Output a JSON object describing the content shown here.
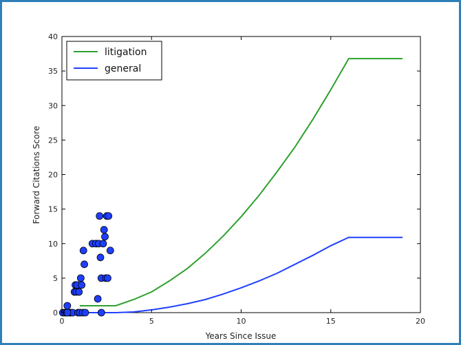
{
  "chart_data": {
    "type": "line",
    "title": "",
    "xlabel": "Years Since Issue",
    "ylabel": "Forward Citations Score",
    "xlim": [
      0,
      20
    ],
    "ylim": [
      0,
      40
    ],
    "xticks": [
      0,
      5,
      10,
      15,
      20
    ],
    "yticks": [
      0,
      5,
      10,
      15,
      20,
      25,
      30,
      35,
      40
    ],
    "grid": false,
    "legend_position": "top-left",
    "series": [
      {
        "name": "litigation",
        "kind": "line",
        "color": "#2ca02c",
        "x": [
          1,
          2,
          3,
          4,
          5,
          6,
          7,
          8,
          9,
          10,
          11,
          12,
          13,
          14,
          15,
          16,
          17,
          18,
          19
        ],
        "y": [
          1.0,
          1.0,
          1.0,
          1.9,
          3.0,
          4.6,
          6.4,
          8.6,
          11.1,
          13.9,
          17.0,
          20.4,
          24.0,
          28.0,
          32.3,
          36.8,
          36.8,
          36.8,
          36.8
        ]
      },
      {
        "name": "general",
        "kind": "line",
        "color": "#1f3fff",
        "x": [
          1,
          2,
          3,
          4,
          5,
          6,
          7,
          8,
          9,
          10,
          11,
          12,
          13,
          14,
          15,
          16,
          17,
          18,
          19
        ],
        "y": [
          0.0,
          0.0,
          0.0,
          0.1,
          0.4,
          0.8,
          1.3,
          1.9,
          2.7,
          3.6,
          4.6,
          5.7,
          7.0,
          8.3,
          9.7,
          10.9,
          10.9,
          10.9,
          10.9
        ]
      },
      {
        "kind": "scatter",
        "color": "#1f3fff",
        "x": [
          0.05,
          0.15,
          0.25,
          0.3,
          0.4,
          0.5,
          0.6,
          0.7,
          0.75,
          0.8,
          0.85,
          0.9,
          0.95,
          1.0,
          1.05,
          1.1,
          1.15,
          1.2,
          1.25,
          1.3,
          1.7,
          1.9,
          2.0,
          2.05,
          2.1,
          2.15,
          2.2,
          2.3,
          2.35,
          2.4,
          2.45,
          2.5,
          2.55,
          2.6,
          2.7,
          2.2,
          0.3
        ],
        "y": [
          0,
          0,
          0,
          1,
          0,
          0,
          0,
          3,
          4,
          3,
          4,
          0,
          3,
          0,
          5,
          4,
          0,
          9,
          7,
          0,
          10,
          10,
          2,
          10,
          14,
          8,
          5,
          10,
          12,
          11,
          5,
          14,
          5,
          14,
          9,
          0,
          0
        ]
      }
    ]
  }
}
